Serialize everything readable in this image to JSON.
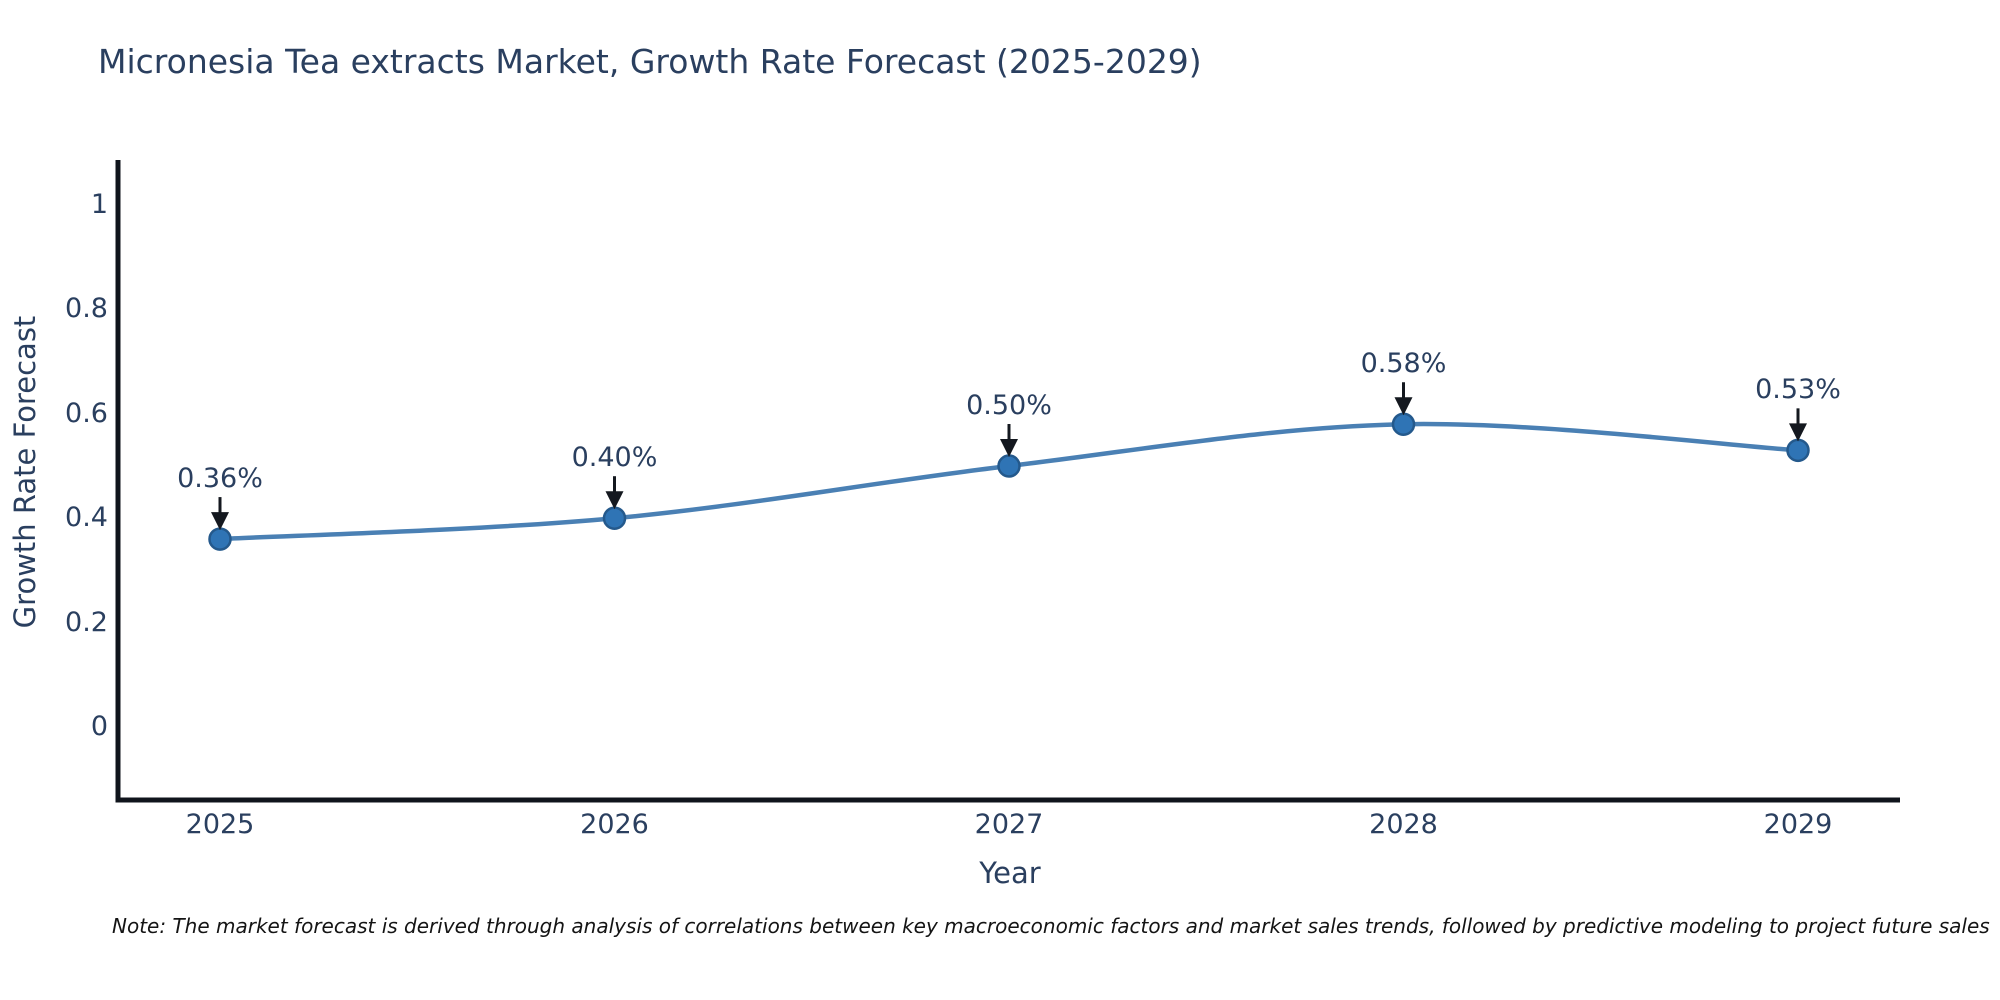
{
  "title": "Micronesia Tea extracts Market, Growth Rate Forecast (2025-2029)",
  "note": "Note: The market forecast is derived through analysis of correlations between key macroeconomic factors and market sales trends, followed by predictive modeling to project future sales",
  "colors": {
    "background": "#ffffff",
    "text": "#2a3f5f",
    "axis": "#10141c",
    "line": "#4a80b4",
    "marker_fill": "#2f74b5",
    "marker_edge": "#24598c",
    "arrow": "#14181f",
    "note_text": "#141414"
  },
  "chart_data": {
    "type": "line",
    "title": "Micronesia Tea extracts Market, Growth Rate Forecast (2025-2029)",
    "x": [
      "2025",
      "2026",
      "2027",
      "2028",
      "2029"
    ],
    "series": [
      {
        "name": "Growth Rate Forecast",
        "values": [
          0.36,
          0.4,
          0.5,
          0.58,
          0.53
        ]
      }
    ],
    "point_labels": [
      "0.36%",
      "0.40%",
      "0.50%",
      "0.58%",
      "0.53%"
    ],
    "xtick_labels": [
      "2025",
      "2026",
      "2027",
      "2028",
      "2029"
    ],
    "yticks": [
      1,
      0.8,
      0.6,
      0.4,
      0.2,
      0
    ],
    "ytick_labels": [
      "1",
      "0.8",
      "0.6",
      "0.4",
      "0.2",
      "0"
    ],
    "xlabel": "Year",
    "ylabel": "Growth Rate Forecast",
    "ylim": [
      -0.14,
      1.09
    ],
    "line_shape": "spline",
    "grid": false,
    "legend": "none",
    "annotations": "value labels with downward arrows above each point"
  }
}
